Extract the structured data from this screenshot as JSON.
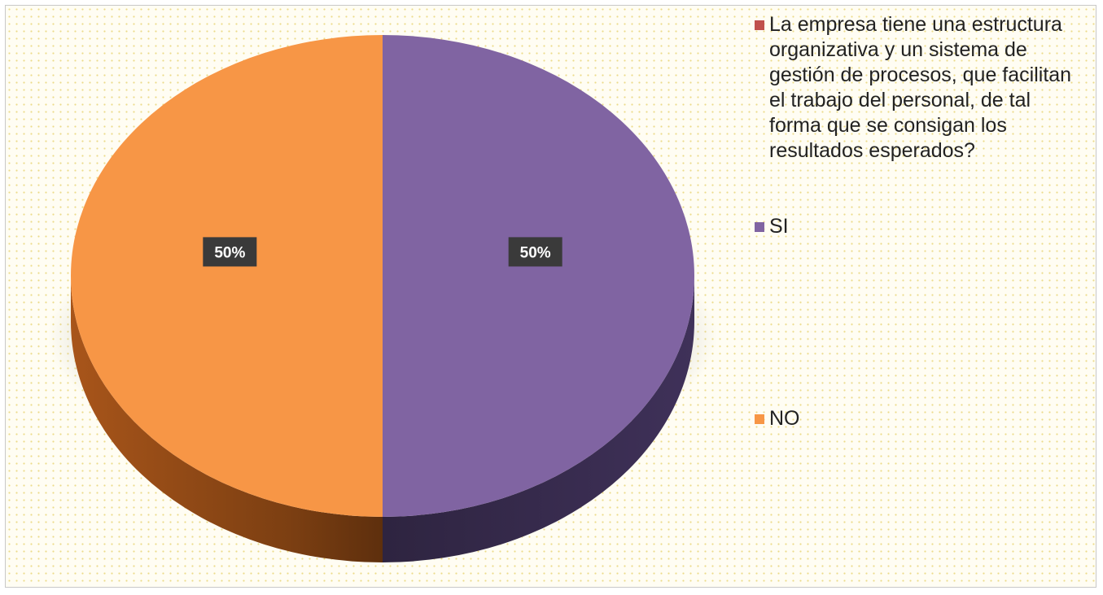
{
  "chart_data": {
    "type": "pie",
    "categories": [
      "La empresa tiene una estructura organizativa y un sistema de gestión de procesos, que facilitan el trabajo del personal, de tal forma que se consigan los resultados esperados?",
      "SI",
      "NO"
    ],
    "values": [
      0,
      50,
      50
    ],
    "data_labels": [
      "",
      "50%",
      "50%"
    ],
    "colors": [
      "#c0504d",
      "#8064a2",
      "#f79646"
    ],
    "legend_position": "right",
    "style": "3d"
  }
}
